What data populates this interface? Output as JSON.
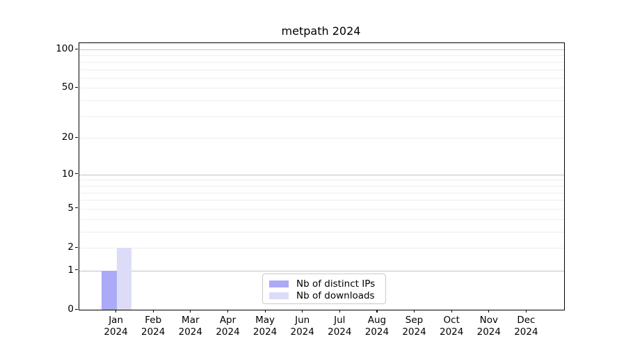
{
  "chart_data": {
    "type": "bar",
    "title": "metpath 2024",
    "categories": [
      "Jan 2024",
      "Feb 2024",
      "Mar 2024",
      "Apr 2024",
      "May 2024",
      "Jun 2024",
      "Jul 2024",
      "Aug 2024",
      "Sep 2024",
      "Oct 2024",
      "Nov 2024",
      "Dec 2024"
    ],
    "series": [
      {
        "name": "Nb of distinct IPs",
        "color": "#aaaaf9",
        "values": [
          1,
          0,
          0,
          0,
          0,
          0,
          0,
          0,
          0,
          0,
          0,
          0
        ]
      },
      {
        "name": "Nb of downloads",
        "color": "#dcdcf9",
        "values": [
          2,
          0,
          0,
          0,
          0,
          0,
          0,
          0,
          0,
          0,
          0,
          0
        ]
      }
    ],
    "y_axis": {
      "scale": "log1p",
      "tick_values": [
        0,
        1,
        2,
        5,
        10,
        20,
        50,
        100
      ],
      "tick_labels": [
        "0",
        "1",
        "2",
        "5",
        "10",
        "20",
        "50",
        "100"
      ],
      "major_gridlines": [
        1,
        10,
        100
      ],
      "minor_gridlines": [
        2,
        3,
        4,
        5,
        6,
        7,
        8,
        9,
        20,
        30,
        40,
        50,
        60,
        70,
        80,
        90
      ],
      "ylim": [
        0,
        112
      ]
    },
    "xlabel": "",
    "ylabel": "",
    "grid": "horizontal",
    "legend": {
      "position": "lower center",
      "entries": [
        "Nb of distinct IPs",
        "Nb of downloads"
      ]
    }
  },
  "colors": {
    "background": "#ffffff",
    "axis": "#000000",
    "major_grid": "#c3c3c3",
    "minor_grid": "#ededed",
    "legend_border": "#c9c9c9",
    "bar_distinct_ips": "#aaaaf9",
    "bar_downloads": "#dcdcf9"
  }
}
